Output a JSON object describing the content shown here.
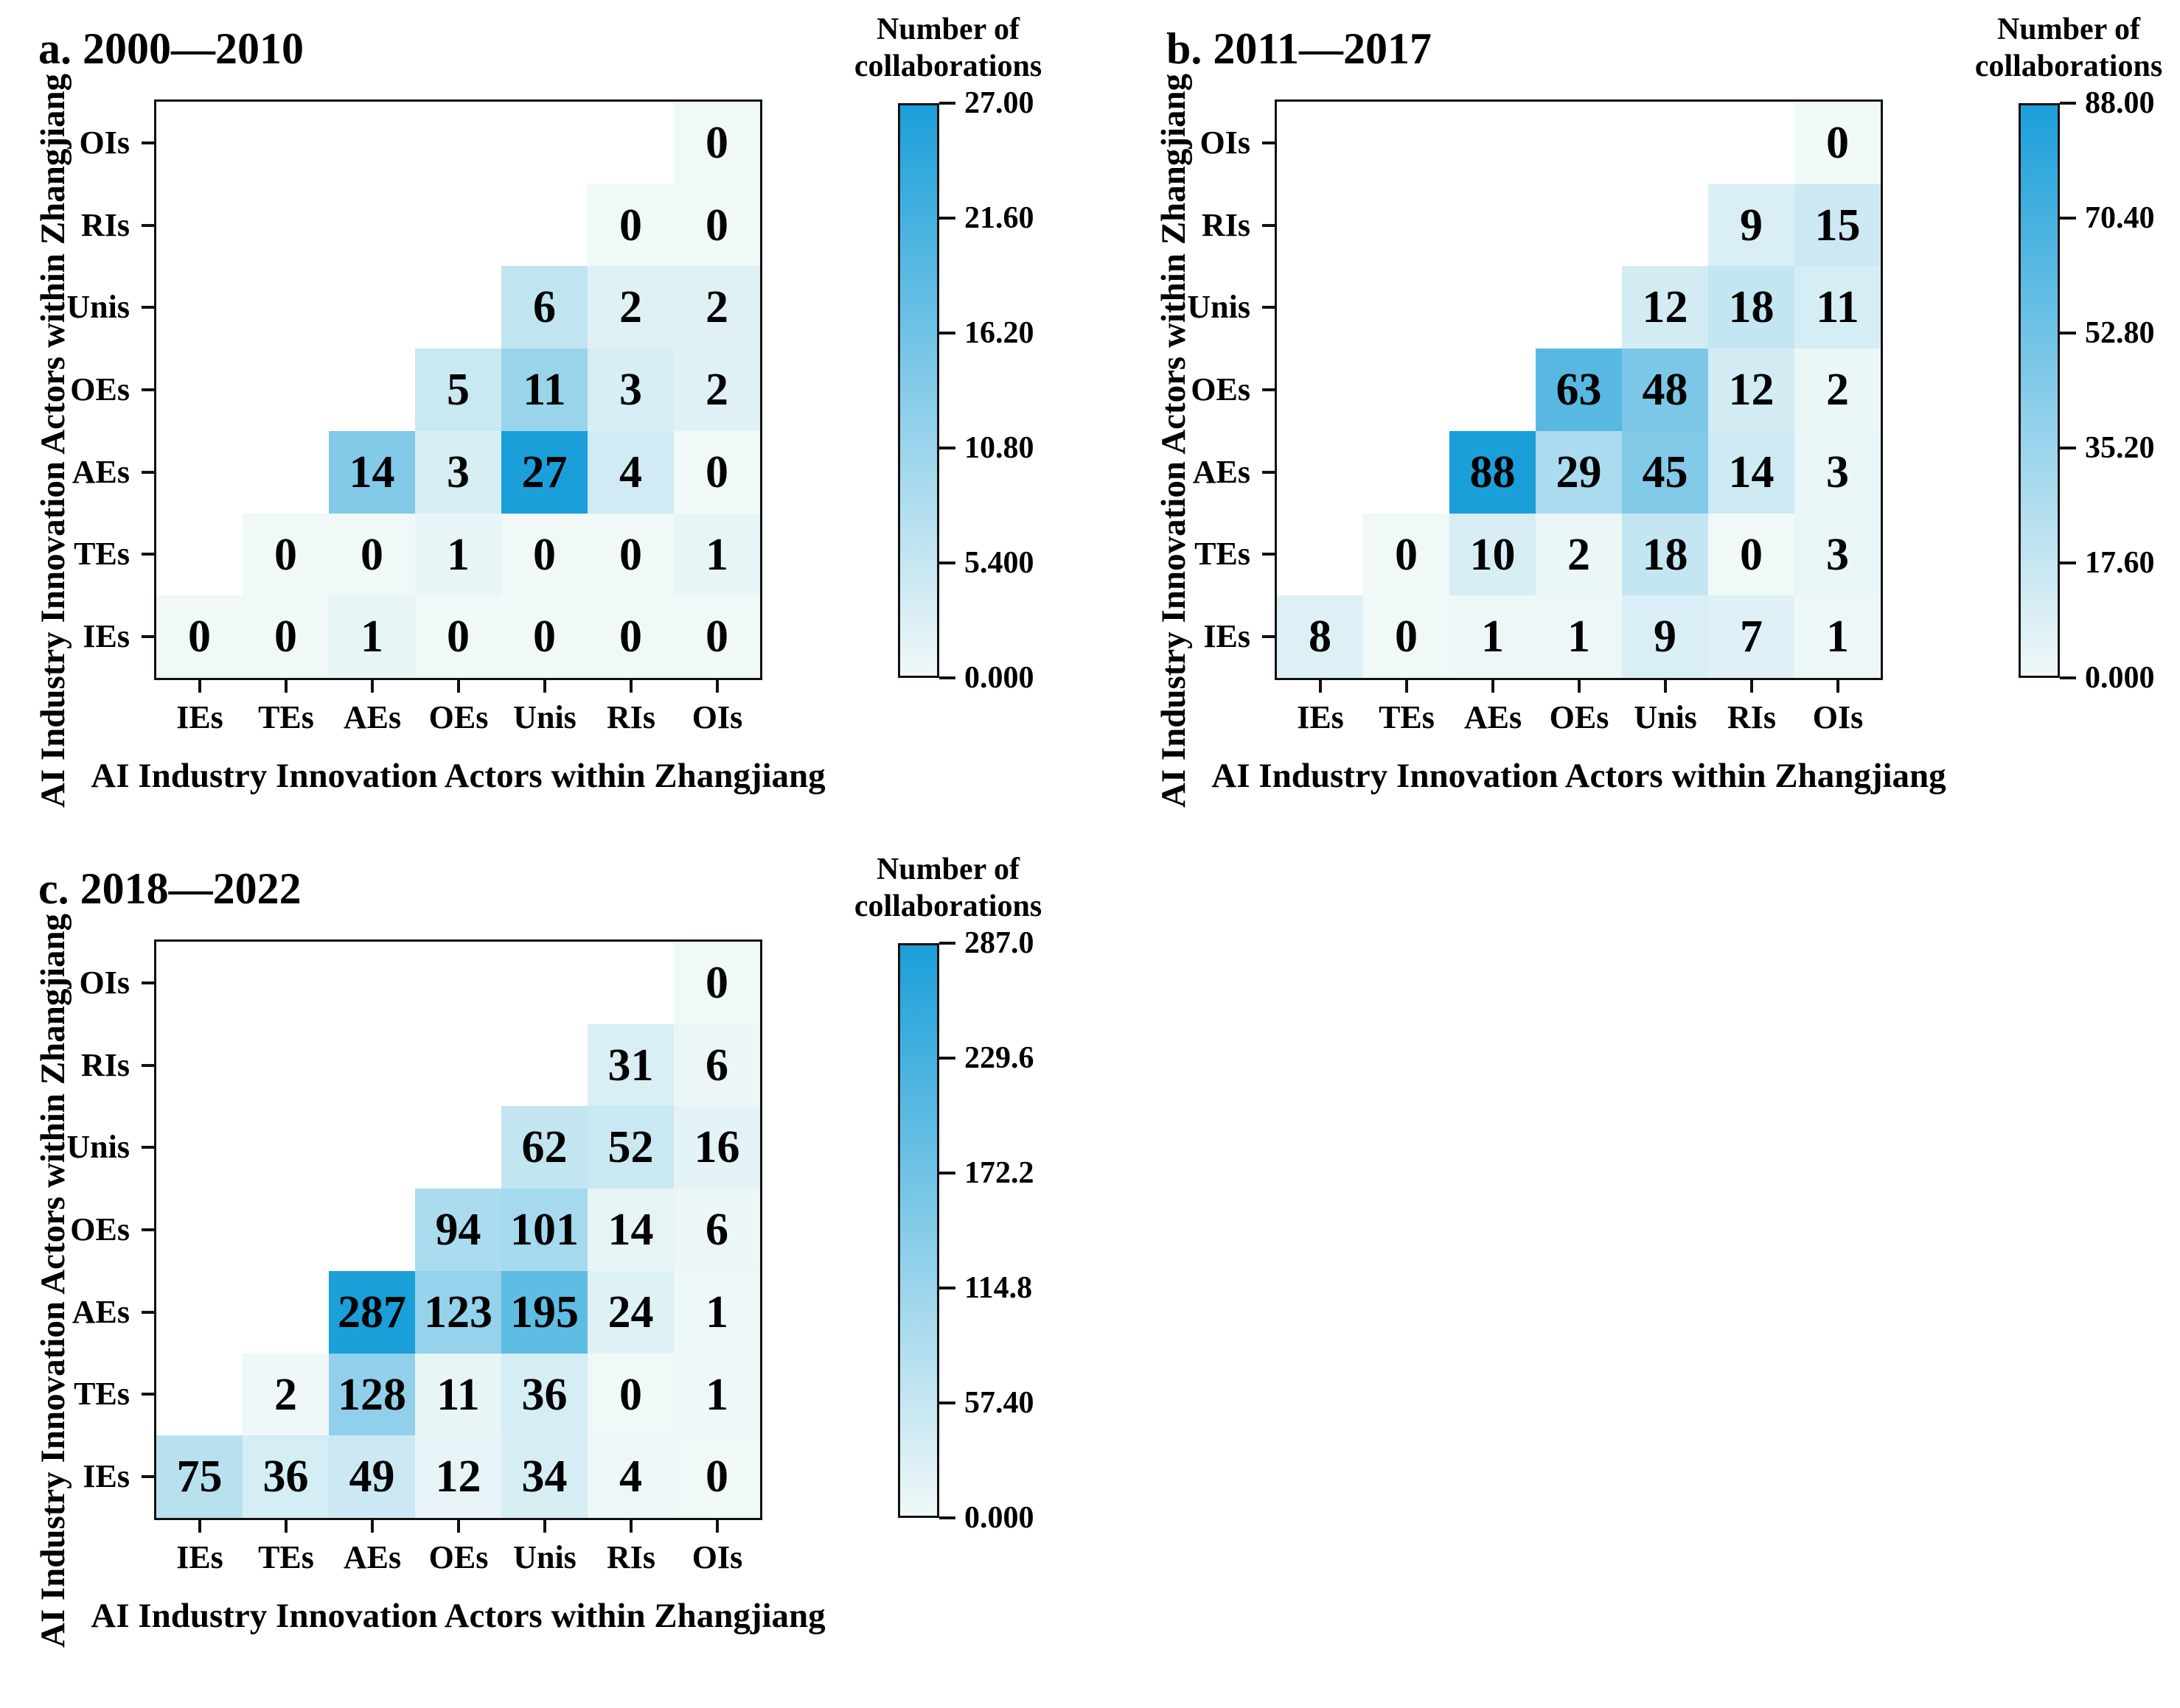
{
  "shared": {
    "axis_label": "AI Industry Innovation Actors within Zhangjiang",
    "colorbar_title_line1": "Number of",
    "colorbar_title_line2": "collaborations",
    "actors": [
      "IEs",
      "TEs",
      "AEs",
      "OEs",
      "Unis",
      "RIs",
      "OIs"
    ],
    "colors": {
      "background": "#ffffff",
      "colormap_low": "#f0f8f8",
      "colormap_high": "#1b9fd9",
      "text": "#000000",
      "spine": "#111111"
    }
  },
  "chart_data": [
    {
      "panel": "a",
      "type": "heatmap",
      "title": "a. 2000—2010",
      "xlabel": "AI Industry Innovation Actors within Zhangjiang",
      "ylabel": "AI Industry Innovation Actors within Zhangjiang",
      "categories": [
        "IEs",
        "TEs",
        "AEs",
        "OEs",
        "Unis",
        "RIs",
        "OIs"
      ],
      "shape_note": "lower triangle: cell shown only where column index >= row index (rows listed bottom to top)",
      "vmin": 0,
      "vmax": 27,
      "colorbar_title": "Number of collaborations",
      "colorbar_ticks": [
        "27.00",
        "21.60",
        "16.20",
        "10.80",
        "5.400",
        "0.000"
      ],
      "rows_bottom_to_top": [
        {
          "actor": "IEs",
          "values": [
            0,
            0,
            1,
            0,
            0,
            0,
            0
          ]
        },
        {
          "actor": "TEs",
          "values": [
            null,
            0,
            0,
            1,
            0,
            0,
            1
          ]
        },
        {
          "actor": "AEs",
          "values": [
            null,
            null,
            14,
            3,
            27,
            4,
            0
          ]
        },
        {
          "actor": "OEs",
          "values": [
            null,
            null,
            null,
            5,
            11,
            3,
            2
          ]
        },
        {
          "actor": "Unis",
          "values": [
            null,
            null,
            null,
            null,
            6,
            2,
            2
          ]
        },
        {
          "actor": "RIs",
          "values": [
            null,
            null,
            null,
            null,
            null,
            0,
            0
          ]
        },
        {
          "actor": "OIs",
          "values": [
            null,
            null,
            null,
            null,
            null,
            null,
            0
          ]
        }
      ]
    },
    {
      "panel": "b",
      "type": "heatmap",
      "title": "b. 2011—2017",
      "xlabel": "AI Industry Innovation Actors within Zhangjiang",
      "ylabel": "AI Industry Innovation Actors within Zhangjiang",
      "categories": [
        "IEs",
        "TEs",
        "AEs",
        "OEs",
        "Unis",
        "RIs",
        "OIs"
      ],
      "shape_note": "lower triangle: cell shown only where column index >= row index (rows listed bottom to top)",
      "vmin": 0,
      "vmax": 88,
      "colorbar_title": "Number of collaborations",
      "colorbar_ticks": [
        "88.00",
        "70.40",
        "52.80",
        "35.20",
        "17.60",
        "0.000"
      ],
      "rows_bottom_to_top": [
        {
          "actor": "IEs",
          "values": [
            8,
            0,
            1,
            1,
            9,
            7,
            1
          ]
        },
        {
          "actor": "TEs",
          "values": [
            null,
            0,
            10,
            2,
            18,
            0,
            3
          ]
        },
        {
          "actor": "AEs",
          "values": [
            null,
            null,
            88,
            29,
            45,
            14,
            3
          ]
        },
        {
          "actor": "OEs",
          "values": [
            null,
            null,
            null,
            63,
            48,
            12,
            2
          ]
        },
        {
          "actor": "Unis",
          "values": [
            null,
            null,
            null,
            null,
            12,
            18,
            11
          ]
        },
        {
          "actor": "RIs",
          "values": [
            null,
            null,
            null,
            null,
            null,
            9,
            15
          ]
        },
        {
          "actor": "OIs",
          "values": [
            null,
            null,
            null,
            null,
            null,
            null,
            0
          ]
        }
      ]
    },
    {
      "panel": "c",
      "type": "heatmap",
      "title": "c. 2018—2022",
      "xlabel": "AI Industry Innovation Actors within Zhangjiang",
      "ylabel": "AI Industry Innovation Actors within Zhangjiang",
      "categories": [
        "IEs",
        "TEs",
        "AEs",
        "OEs",
        "Unis",
        "RIs",
        "OIs"
      ],
      "shape_note": "lower triangle: cell shown only where column index >= row index (rows listed bottom to top)",
      "vmin": 0,
      "vmax": 287,
      "colorbar_title": "Number of collaborations",
      "colorbar_ticks": [
        "287.0",
        "229.6",
        "172.2",
        "114.8",
        "57.40",
        "0.000"
      ],
      "rows_bottom_to_top": [
        {
          "actor": "IEs",
          "values": [
            75,
            36,
            49,
            12,
            34,
            4,
            0
          ]
        },
        {
          "actor": "TEs",
          "values": [
            null,
            2,
            128,
            11,
            36,
            0,
            1
          ]
        },
        {
          "actor": "AEs",
          "values": [
            null,
            null,
            287,
            123,
            195,
            24,
            1
          ]
        },
        {
          "actor": "OEs",
          "values": [
            null,
            null,
            null,
            94,
            101,
            14,
            6
          ]
        },
        {
          "actor": "Unis",
          "values": [
            null,
            null,
            null,
            null,
            62,
            52,
            16
          ]
        },
        {
          "actor": "RIs",
          "values": [
            null,
            null,
            null,
            null,
            null,
            31,
            6
          ]
        },
        {
          "actor": "OIs",
          "values": [
            null,
            null,
            null,
            null,
            null,
            null,
            0
          ]
        }
      ]
    }
  ]
}
